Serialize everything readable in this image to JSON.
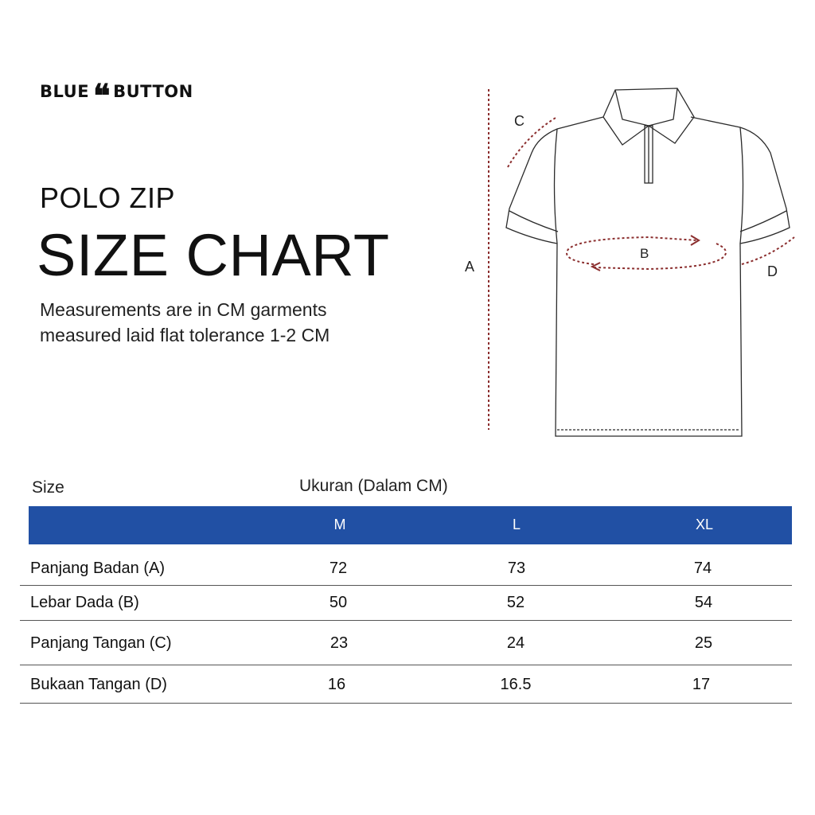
{
  "brand": {
    "left": "BLUE",
    "mark": "❝",
    "right": "BUTTON"
  },
  "product": "POLO ZIP",
  "title": "SIZE CHART",
  "description": "Measurements are in CM garments measured laid flat tolerance 1-2 CM",
  "diagram_labels": {
    "a": "A",
    "b": "B",
    "c": "C",
    "d": "D"
  },
  "colors": {
    "header_bg": "#2150a4",
    "measure_line": "#8b2e2e"
  },
  "table": {
    "size_label": "Size",
    "unit_label": "Ukuran (Dalam CM)",
    "columns": [
      "M",
      "L",
      "XL"
    ],
    "rows": [
      {
        "name": "Panjang Badan (A)",
        "values": [
          "72",
          "73",
          "74"
        ]
      },
      {
        "name": "Lebar Dada (B)",
        "values": [
          "50",
          "52",
          "54"
        ]
      },
      {
        "name": "Panjang Tangan (C)",
        "values": [
          "23",
          "24",
          "25"
        ]
      },
      {
        "name": "Bukaan Tangan (D)",
        "values": [
          "16",
          "16.5",
          "17"
        ]
      }
    ]
  }
}
